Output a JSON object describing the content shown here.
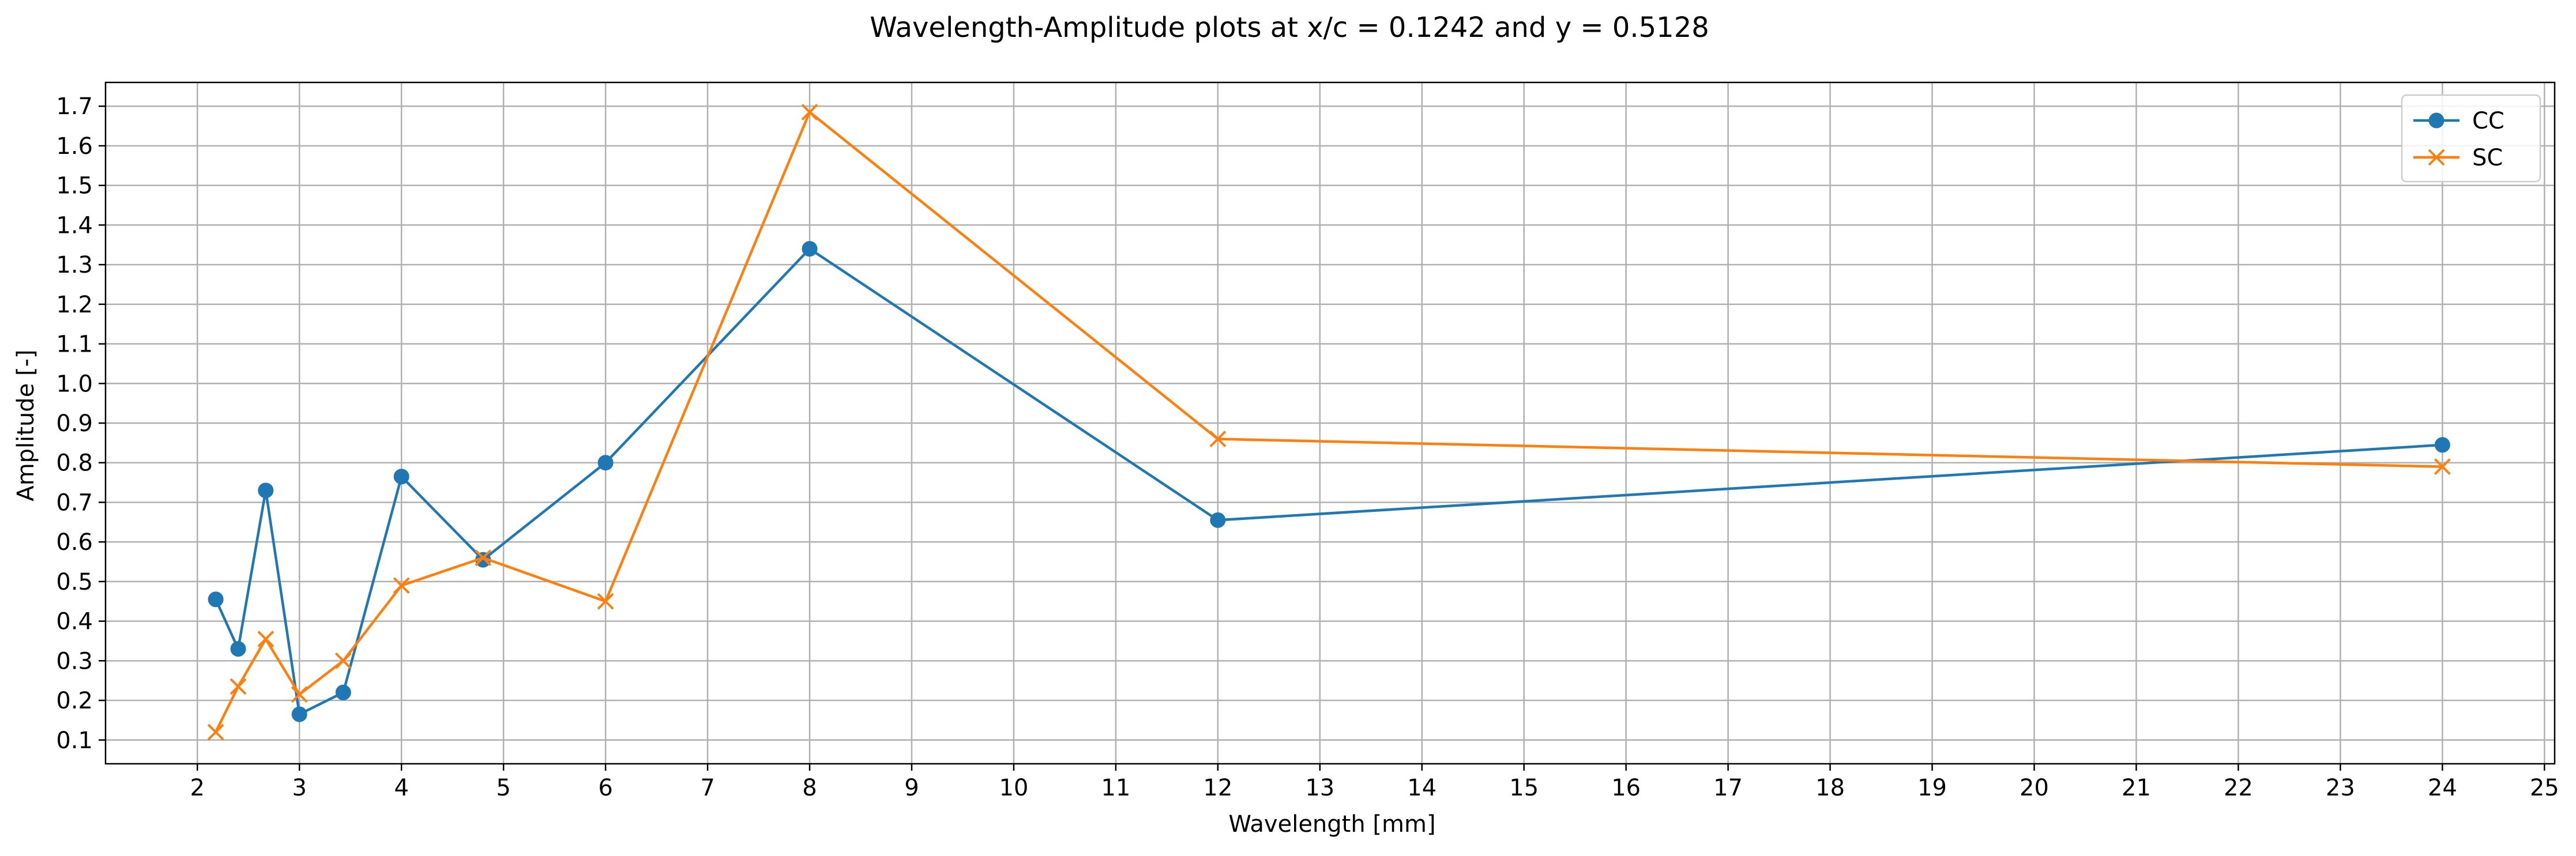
{
  "chart_data": {
    "type": "line",
    "title": "Wavelength-Amplitude plots at x/c = 0.1242 and y = 0.5128",
    "xlabel": "Wavelength [mm]",
    "ylabel": "Amplitude [-]",
    "xlim": [
      1.1,
      25.1
    ],
    "ylim": [
      0.04,
      1.76
    ],
    "xticks": [
      2,
      3,
      4,
      5,
      6,
      7,
      8,
      9,
      10,
      11,
      12,
      13,
      14,
      15,
      16,
      17,
      18,
      19,
      20,
      21,
      22,
      23,
      24,
      25
    ],
    "yticks": [
      0.1,
      0.2,
      0.3,
      0.4,
      0.5,
      0.6,
      0.7,
      0.8,
      0.9,
      1.0,
      1.1,
      1.2,
      1.3,
      1.4,
      1.5,
      1.6,
      1.7
    ],
    "ytick_labels": [
      "0.1",
      "0.2",
      "0.3",
      "0.4",
      "0.5",
      "0.6",
      "0.7",
      "0.8",
      "0.9",
      "1.0",
      "1.1",
      "1.2",
      "1.3",
      "1.4",
      "1.5",
      "1.6",
      "1.7"
    ],
    "grid": true,
    "legend_position": "top-right",
    "x": [
      2.18,
      2.4,
      2.67,
      3.0,
      3.43,
      4.0,
      4.8,
      6.0,
      8.0,
      12.0,
      24.0
    ],
    "series": [
      {
        "name": "CC",
        "color": "#1f77b4",
        "marker": "circle",
        "values": [
          0.455,
          0.33,
          0.73,
          0.165,
          0.22,
          0.765,
          0.555,
          0.8,
          1.34,
          0.655,
          0.845
        ]
      },
      {
        "name": "SC",
        "color": "#ff7f0e",
        "marker": "x",
        "values": [
          0.12,
          0.235,
          0.355,
          0.215,
          0.3,
          0.49,
          0.56,
          0.45,
          1.685,
          0.86,
          0.79
        ]
      }
    ]
  }
}
